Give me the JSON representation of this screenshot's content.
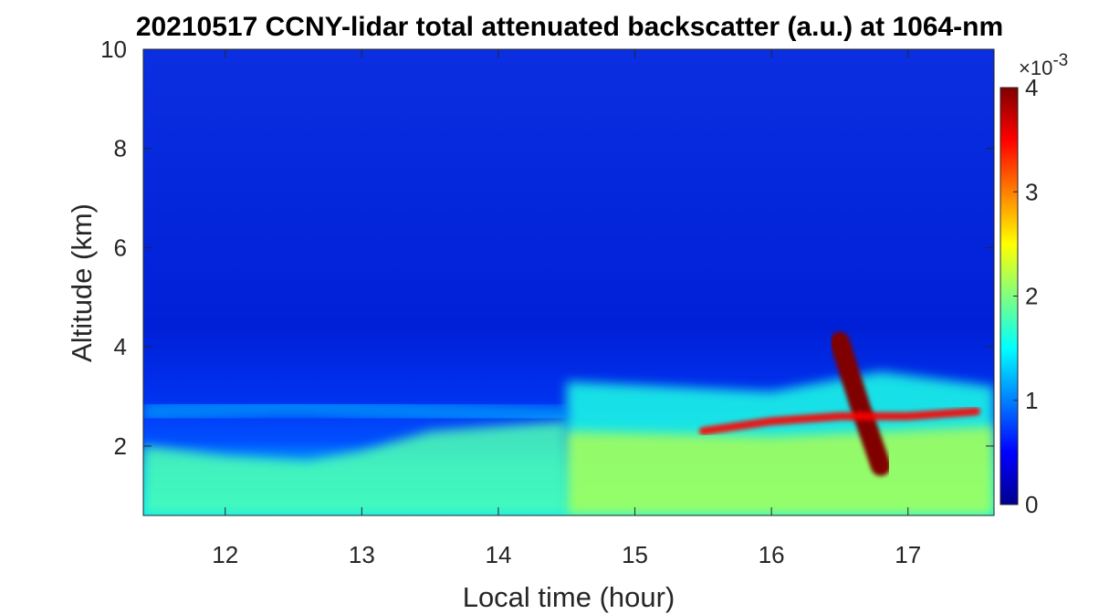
{
  "chart_data": {
    "type": "heatmap",
    "title": "20210517 CCNY-lidar total attenuated backscatter (a.u.) at 1064-nm",
    "xlabel": "Local time (hour)",
    "ylabel": "Altitude (km)",
    "xlim": [
      11.4,
      17.63
    ],
    "ylim": [
      0.6,
      10
    ],
    "xticks": [
      12,
      13,
      14,
      15,
      16,
      17
    ],
    "yticks": [
      2,
      4,
      6,
      8,
      10
    ],
    "colorbar": {
      "range": [
        0,
        4
      ],
      "ticks": [
        0,
        1,
        2,
        3,
        4
      ],
      "exponent_label": "×10",
      "exponent": "-3",
      "colormap": "jet",
      "colors": [
        "#00008f",
        "#0000ff",
        "#00ffff",
        "#ffff00",
        "#ff0000",
        "#800000"
      ]
    },
    "features": [
      {
        "name": "aerosol boundary layer top",
        "x": [
          11.4,
          12.0,
          12.6,
          13.0,
          13.5,
          14.0,
          14.5
        ],
        "y": [
          2.0,
          1.8,
          1.7,
          1.9,
          2.3,
          2.4,
          2.5
        ],
        "value": 1.8
      },
      {
        "name": "residual layer",
        "x": [
          11.4,
          12.5,
          13.5,
          14.5
        ],
        "y": [
          2.7,
          2.8,
          2.7,
          2.6
        ],
        "value": 1.2
      },
      {
        "name": "convective cloud",
        "x": [
          16.5,
          16.65,
          16.8
        ],
        "y": [
          4.1,
          2.8,
          1.6
        ],
        "value": 4.0
      },
      {
        "name": "cloud layer",
        "x": [
          15.5,
          16.0,
          16.5,
          17.0,
          17.5
        ],
        "y": [
          2.3,
          2.5,
          2.6,
          2.6,
          2.7
        ],
        "value": 3.5
      }
    ]
  }
}
